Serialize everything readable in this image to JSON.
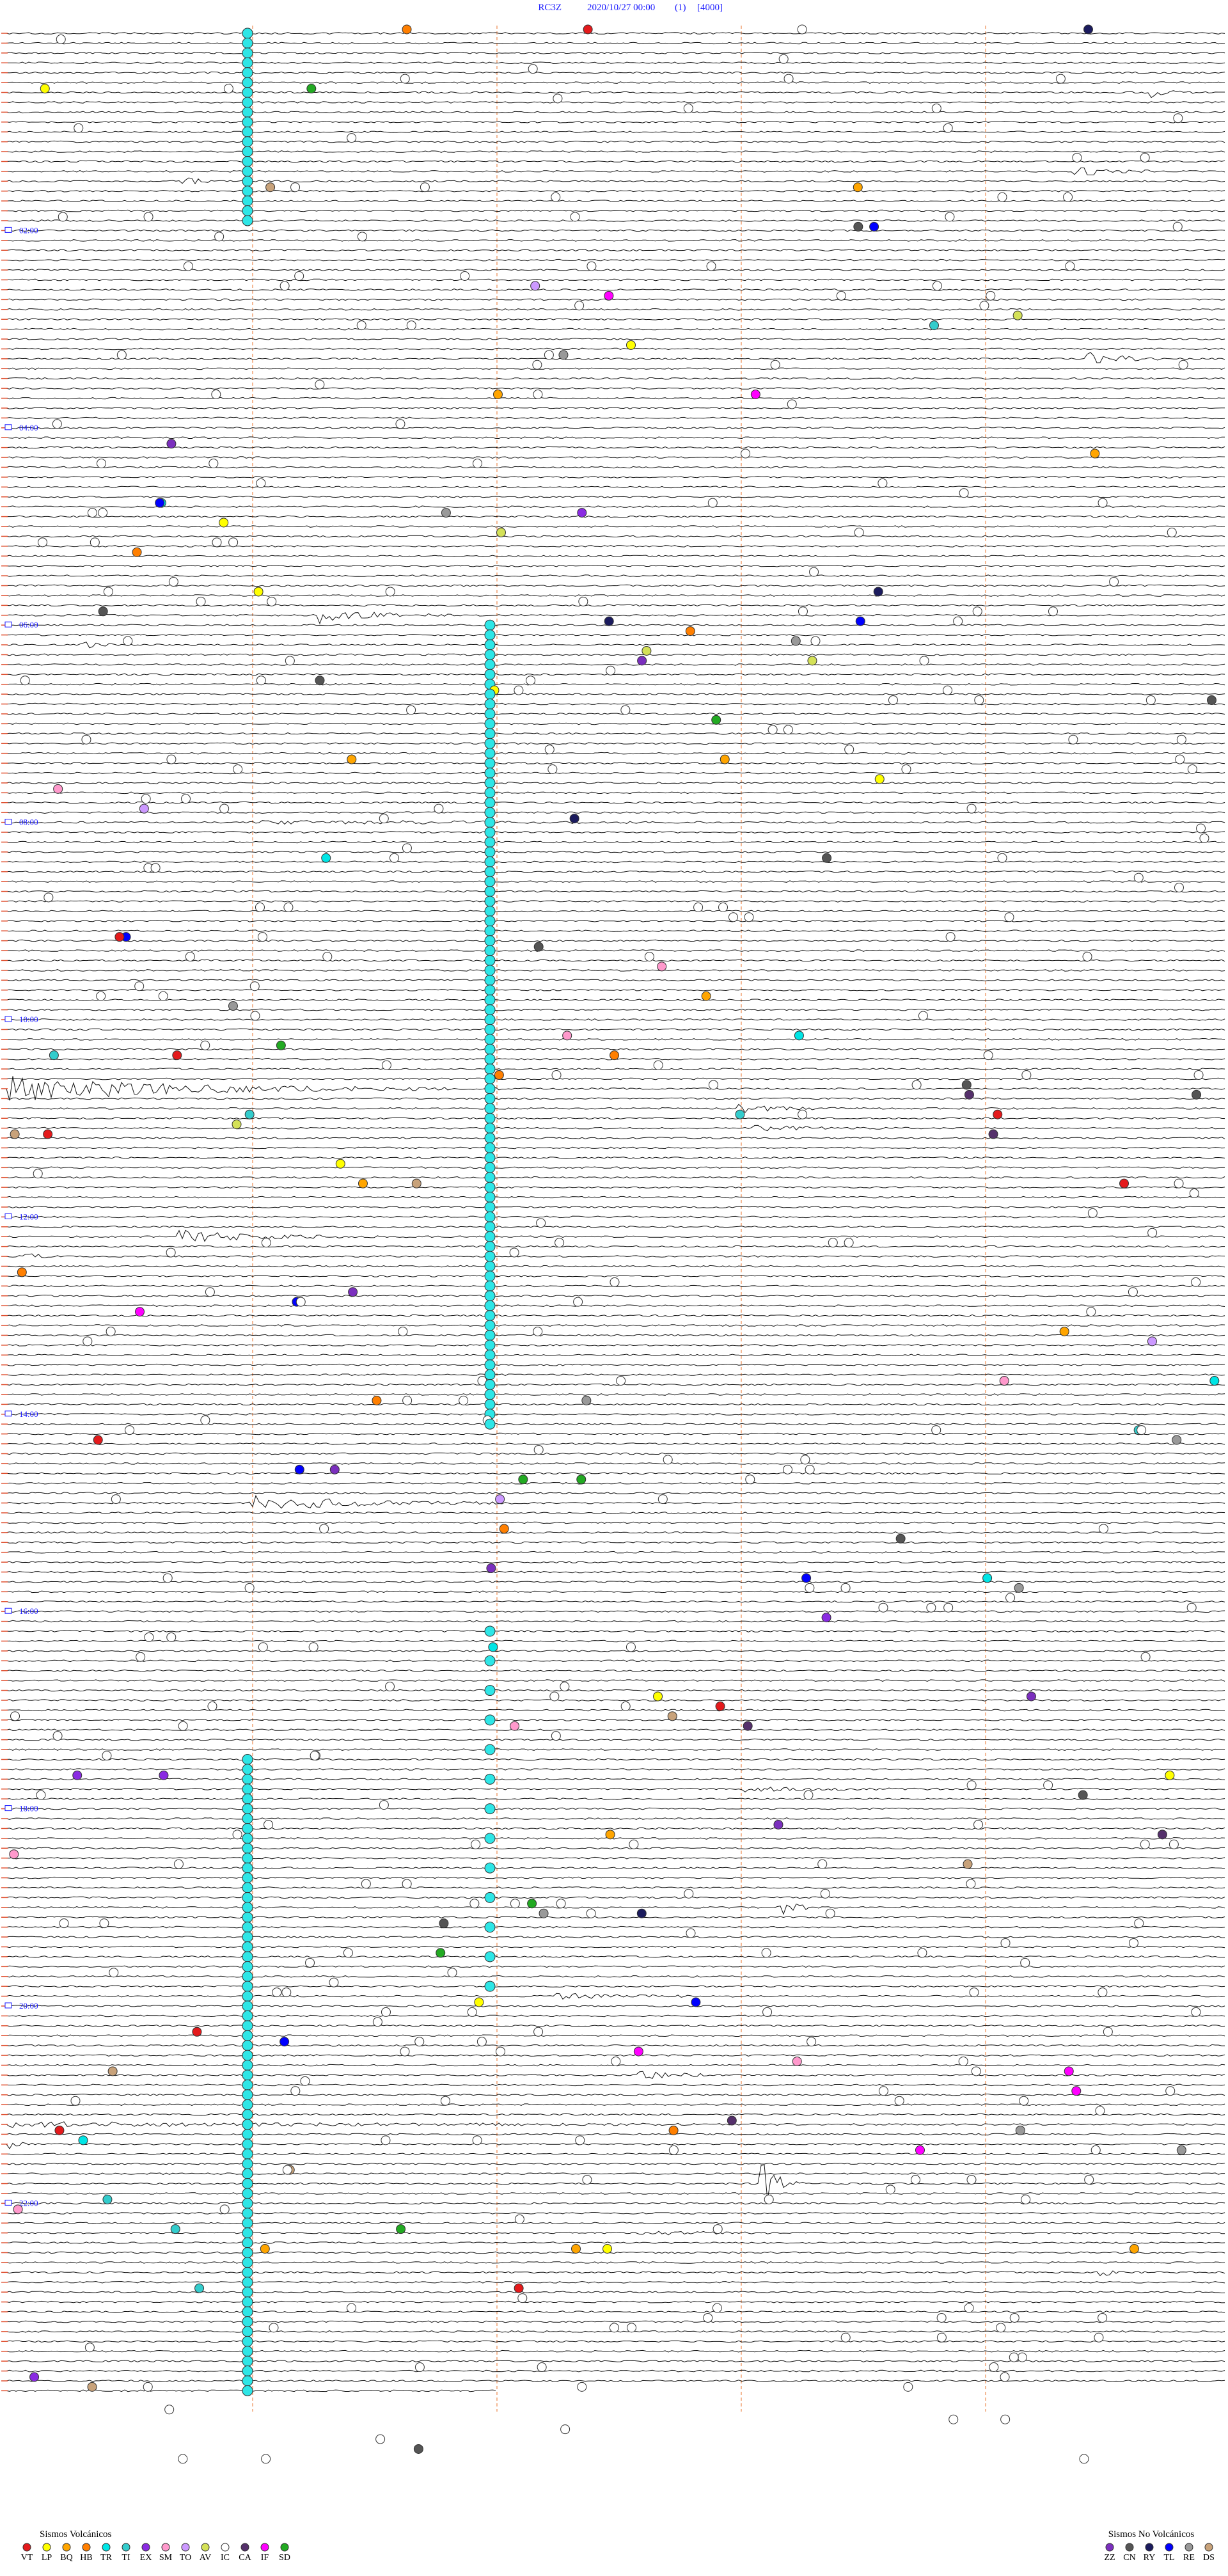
{
  "header": {
    "station": "RC3Z",
    "datetime": "2020/10/27 00:00",
    "index": "(1)",
    "scale": "[4000]"
  },
  "time_labels": [
    "02:00",
    "04:00",
    "06:00",
    "08:00",
    "10:00",
    "12:00",
    "14:00",
    "16:00",
    "18:00",
    "20:00",
    "22:00"
  ],
  "legend": {
    "volcanic": {
      "title": "Sismos Volcánicos",
      "items": [
        {
          "code": "VT",
          "color": "#e41a1c"
        },
        {
          "code": "LP",
          "color": "#ffff00"
        },
        {
          "code": "BQ",
          "color": "#ffa500"
        },
        {
          "code": "HB",
          "color": "#ff7f00"
        },
        {
          "code": "TR",
          "color": "#00e5e5"
        },
        {
          "code": "TI",
          "color": "#33cccc"
        },
        {
          "code": "EX",
          "color": "#8a2be2"
        },
        {
          "code": "SM",
          "color": "#ff99cc"
        },
        {
          "code": "TO",
          "color": "#cc99ff"
        },
        {
          "code": "AV",
          "color": "#d4e157"
        },
        {
          "code": "IC",
          "color": "#ffffff"
        },
        {
          "code": "CA",
          "color": "#55306b"
        },
        {
          "code": "IF",
          "color": "#ff00ff"
        },
        {
          "code": "SD",
          "color": "#22aa22"
        }
      ]
    },
    "non_volcanic": {
      "title": "Sismos No Volcánicos",
      "items": [
        {
          "code": "ZZ",
          "color": "#7b2fbe"
        },
        {
          "code": "CN",
          "color": "#555555"
        },
        {
          "code": "RY",
          "color": "#1b1b5e"
        },
        {
          "code": "TL",
          "color": "#0000ff"
        },
        {
          "code": "RE",
          "color": "#999999"
        },
        {
          "code": "DS",
          "color": "#c8a27a"
        }
      ]
    }
  }
}
